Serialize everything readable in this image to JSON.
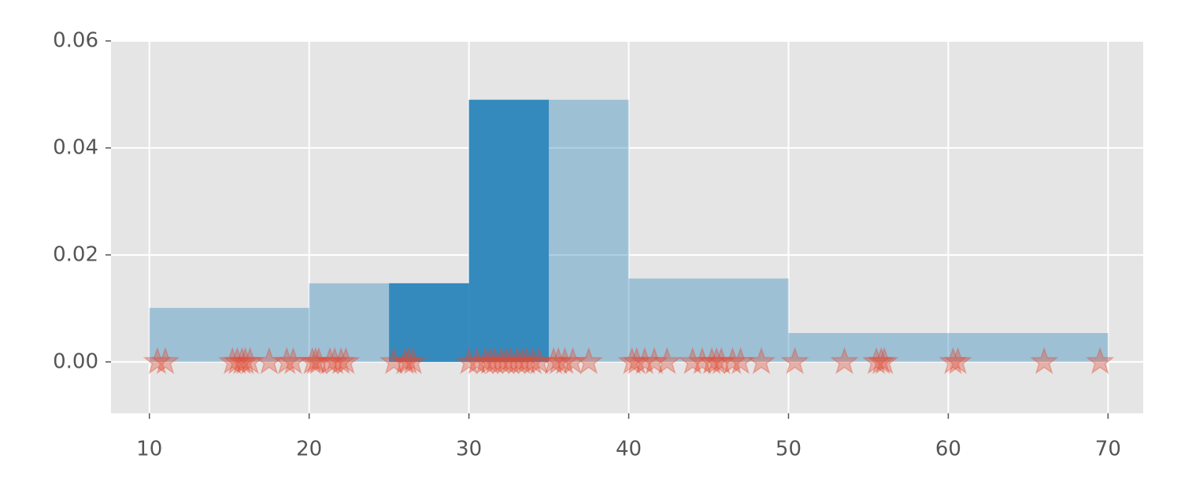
{
  "chart_data": {
    "type": "histogram",
    "bins": [
      10,
      20,
      25,
      30,
      35,
      40,
      50,
      70
    ],
    "series": [
      {
        "color": "#348ABD",
        "alpha": 0.4,
        "values": [
          0.0101,
          0.0147,
          0.0147,
          0.049,
          0.049,
          0.0156,
          0.0054
        ]
      },
      {
        "color": "#348ABD",
        "alpha": 1,
        "values": [
          null,
          null,
          0.0147,
          0.049,
          null,
          null,
          null
        ]
      }
    ],
    "points": {
      "color": "#E24A33",
      "alpha": 0.35,
      "x": [
        10.5,
        11,
        15.2,
        15.5,
        15.8,
        16,
        16.3,
        17.5,
        18.6,
        19,
        20.2,
        20.4,
        20.6,
        21.3,
        21.6,
        22,
        22.3,
        25.3,
        26,
        26.2,
        26.5,
        30,
        30.5,
        31,
        31.3,
        31.6,
        32,
        32.3,
        32.6,
        33,
        33.3,
        33.6,
        34,
        34.4,
        35.3,
        35.6,
        36,
        36.5,
        37.5,
        40.2,
        40.5,
        41,
        41.6,
        42.4,
        44,
        44.6,
        45.2,
        45.5,
        45.8,
        46.5,
        47,
        48.3,
        50.4,
        53.5,
        55.5,
        55.8,
        56,
        60.3,
        60.6,
        66,
        69.5
      ],
      "y": [
        0,
        0,
        0,
        0,
        0,
        0,
        0,
        0,
        0,
        0,
        0,
        0,
        0,
        0,
        0,
        0,
        0,
        0,
        0,
        0,
        0,
        0,
        0,
        0,
        0,
        0,
        0,
        0,
        0,
        0,
        0,
        0,
        0,
        0,
        0,
        0,
        0,
        0,
        0,
        0,
        0,
        0,
        0,
        0,
        0,
        0,
        0,
        0,
        0,
        0,
        0,
        0,
        0,
        0,
        0,
        0,
        0,
        0,
        0,
        0,
        0
      ]
    },
    "xlim": [
      7.6,
      72.2
    ],
    "xticks": [
      10,
      20,
      30,
      40,
      50,
      60,
      70
    ],
    "ylim": [
      -0.0096,
      0.06
    ],
    "yticks": [
      {
        "value": 0,
        "label": "0.00"
      },
      {
        "value": 0.02,
        "label": "0.02"
      },
      {
        "value": 0.04,
        "label": "0.04"
      },
      {
        "value": 0.06,
        "label": "0.06"
      }
    ],
    "grid": true
  }
}
